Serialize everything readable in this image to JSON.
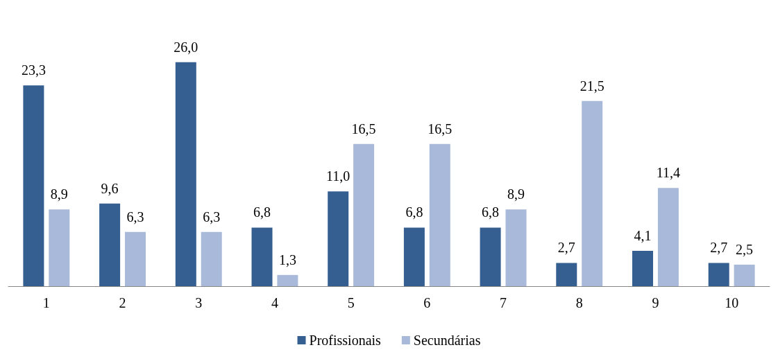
{
  "chart_data": {
    "type": "bar",
    "categories": [
      "1",
      "2",
      "3",
      "4",
      "5",
      "6",
      "7",
      "8",
      "9",
      "10"
    ],
    "series": [
      {
        "name": "Profissionais",
        "color": "#365f91",
        "values": [
          23.3,
          9.6,
          26.0,
          6.8,
          11.0,
          6.8,
          6.8,
          2.7,
          4.1,
          2.7
        ],
        "value_labels": [
          "23,3",
          "9,6",
          "26,0",
          "6,8",
          "11,0",
          "6,8",
          "6,8",
          "2,7",
          "4,1",
          "2,7"
        ]
      },
      {
        "name": "Secundárias",
        "color": "#a9b9d9",
        "values": [
          8.9,
          6.3,
          6.3,
          1.3,
          16.5,
          16.5,
          8.9,
          21.5,
          11.4,
          2.5
        ],
        "value_labels": [
          "8,9",
          "6,3",
          "6,3",
          "1,3",
          "16,5",
          "16,5",
          "8,9",
          "21,5",
          "11,4",
          "2,5"
        ]
      }
    ],
    "legend": "bottom"
  }
}
